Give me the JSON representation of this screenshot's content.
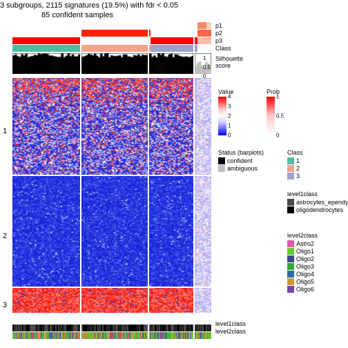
{
  "title": "3 subgroups, 2115 signatures (19.5%) with fdr < 0.05",
  "subtitle": "85 confident samples",
  "columns": {
    "widths": [
      98,
      96,
      64,
      24
    ],
    "gap": 2
  },
  "rows": {
    "heights": [
      140,
      160,
      36
    ],
    "gap": 2,
    "labels": [
      "1",
      "2",
      "3"
    ]
  },
  "top_annotations": [
    {
      "name": "p1",
      "segments": [
        [
          "#ffffff",
          98
        ],
        [
          "#ffffff",
          98
        ],
        [
          "#ffffff",
          66
        ],
        [
          "#ff8866",
          13
        ],
        [
          "#ffd0c0",
          13
        ]
      ]
    },
    {
      "name": "p2",
      "segments": [
        [
          "#ffffff",
          98
        ],
        [
          "#ff2200",
          98
        ],
        [
          "#ffffff",
          66
        ],
        [
          "#ff6644",
          26
        ]
      ]
    },
    {
      "name": "p3",
      "segments": [
        [
          "#ff0000",
          98
        ],
        [
          "#ffffff",
          98
        ],
        [
          "#ff0000",
          66
        ],
        [
          "#ffbbaa",
          26
        ]
      ]
    },
    {
      "name": "Class",
      "segments": [
        [
          "#4bbfa5",
          98
        ],
        [
          "#f5a48a",
          98
        ],
        [
          "#9aa4cc",
          66
        ],
        [
          "#ffffff",
          26
        ]
      ]
    }
  ],
  "silhouette": {
    "name": "Silhouette score",
    "fill": "#000000",
    "ambiguous_fill": "#bfbfbf",
    "axis": [
      "0",
      "0.5",
      "1"
    ]
  },
  "bottom_annotations": [
    {
      "name": "level1class",
      "colors": [
        "#4a4a4a",
        "#000000",
        "#4a4a4a",
        "#000000"
      ]
    },
    {
      "name": "level2class",
      "colors": [
        "#66cc33",
        "#cc9933",
        "#33aa33",
        "#6644aa",
        "#3366aa",
        "#cc9933",
        "#66cc33",
        "#cc4488",
        "#33aa33",
        "#66cc33"
      ]
    }
  ],
  "legends": {
    "value": {
      "title": "Value",
      "ticks": [
        "0",
        "1",
        "2",
        "3",
        "4"
      ],
      "gradient": [
        "#0000ff",
        "#6666ff",
        "#ccccff",
        "#ffffff",
        "#ffcccc",
        "#ff6666",
        "#ff0000"
      ]
    },
    "prob": {
      "title": "Prob",
      "ticks": [
        "0",
        "0.5",
        "1"
      ],
      "gradient": [
        "#ffffff",
        "#ffcccc",
        "#ff0000"
      ]
    },
    "status": {
      "title": "Status (barplots)",
      "items": [
        {
          "c": "#000000",
          "l": "confident"
        },
        {
          "c": "#bfbfbf",
          "l": "ambiguous"
        }
      ]
    },
    "class": {
      "title": "Class",
      "items": [
        {
          "c": "#4bbfa5",
          "l": "1"
        },
        {
          "c": "#f5a48a",
          "l": "2"
        },
        {
          "c": "#9aa4cc",
          "l": "3"
        }
      ]
    },
    "level1": {
      "title": "level1class",
      "items": [
        {
          "c": "#4a4a4a",
          "l": "astrocytes_ependymal"
        },
        {
          "c": "#000000",
          "l": "oligodendrocytes"
        }
      ]
    },
    "level2": {
      "title": "level2class",
      "items": [
        {
          "c": "#e455a5",
          "l": "Astro2"
        },
        {
          "c": "#66cc33",
          "l": "Oligo1"
        },
        {
          "c": "#3a4a8a",
          "l": "Oligo2"
        },
        {
          "c": "#33aa33",
          "l": "Oligo3"
        },
        {
          "c": "#3366aa",
          "l": "Oligo4"
        },
        {
          "c": "#cc9933",
          "l": "Oligo5"
        },
        {
          "c": "#7744aa",
          "l": "Oligo6"
        }
      ]
    }
  },
  "heatmap_style": {
    "row1": {
      "base": "#2030e0",
      "mix": "#ffffff",
      "accent": "#ff3322",
      "density": 0.55,
      "accent_prob": 0.35
    },
    "row2": {
      "base": "#1828d8",
      "mix": "#5060f0",
      "accent": "#ffffff",
      "density": 0.35,
      "accent_prob": 0.08
    },
    "row3": {
      "base": "#ff2210",
      "mix": "#ff9080",
      "accent": "#1828d8",
      "density": 0.5,
      "accent_prob": 0.15
    },
    "col4_override": {
      "base": "#b0b0ff",
      "mix": "#ffffff",
      "accent": "#ffc0b0",
      "density": 0.6,
      "accent_prob": 0.3
    }
  }
}
